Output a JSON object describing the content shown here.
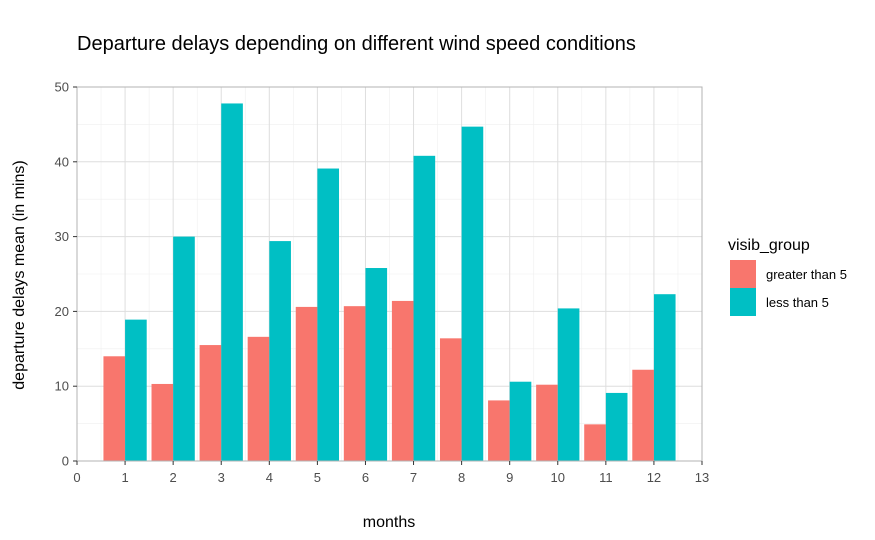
{
  "chart_data": {
    "type": "bar",
    "title": "Departure delays depending on different wind speed conditions",
    "xlabel": "months",
    "ylabel": "departure delays mean (in mins)",
    "x": [
      1,
      2,
      3,
      4,
      5,
      6,
      7,
      8,
      9,
      10,
      11,
      12
    ],
    "xlim": [
      0,
      13
    ],
    "xticks": [
      "0",
      "1",
      "2",
      "3",
      "4",
      "5",
      "6",
      "7",
      "8",
      "9",
      "10",
      "11",
      "12",
      "13"
    ],
    "ylim": [
      0,
      50
    ],
    "yticks": [
      "0",
      "10",
      "20",
      "30",
      "40",
      "50"
    ],
    "grid": true,
    "legend": {
      "title": "visib_group",
      "placement": "right"
    },
    "series": [
      {
        "name": "greater than 5",
        "color": "#F8766D",
        "values": [
          14.0,
          10.3,
          15.5,
          16.6,
          20.6,
          20.7,
          21.4,
          16.4,
          8.1,
          10.2,
          4.9,
          12.2
        ]
      },
      {
        "name": "less than 5",
        "color": "#00BFC4",
        "values": [
          18.9,
          30.0,
          47.8,
          29.4,
          39.1,
          25.8,
          40.8,
          44.7,
          10.6,
          20.4,
          9.1,
          22.3
        ]
      }
    ]
  }
}
